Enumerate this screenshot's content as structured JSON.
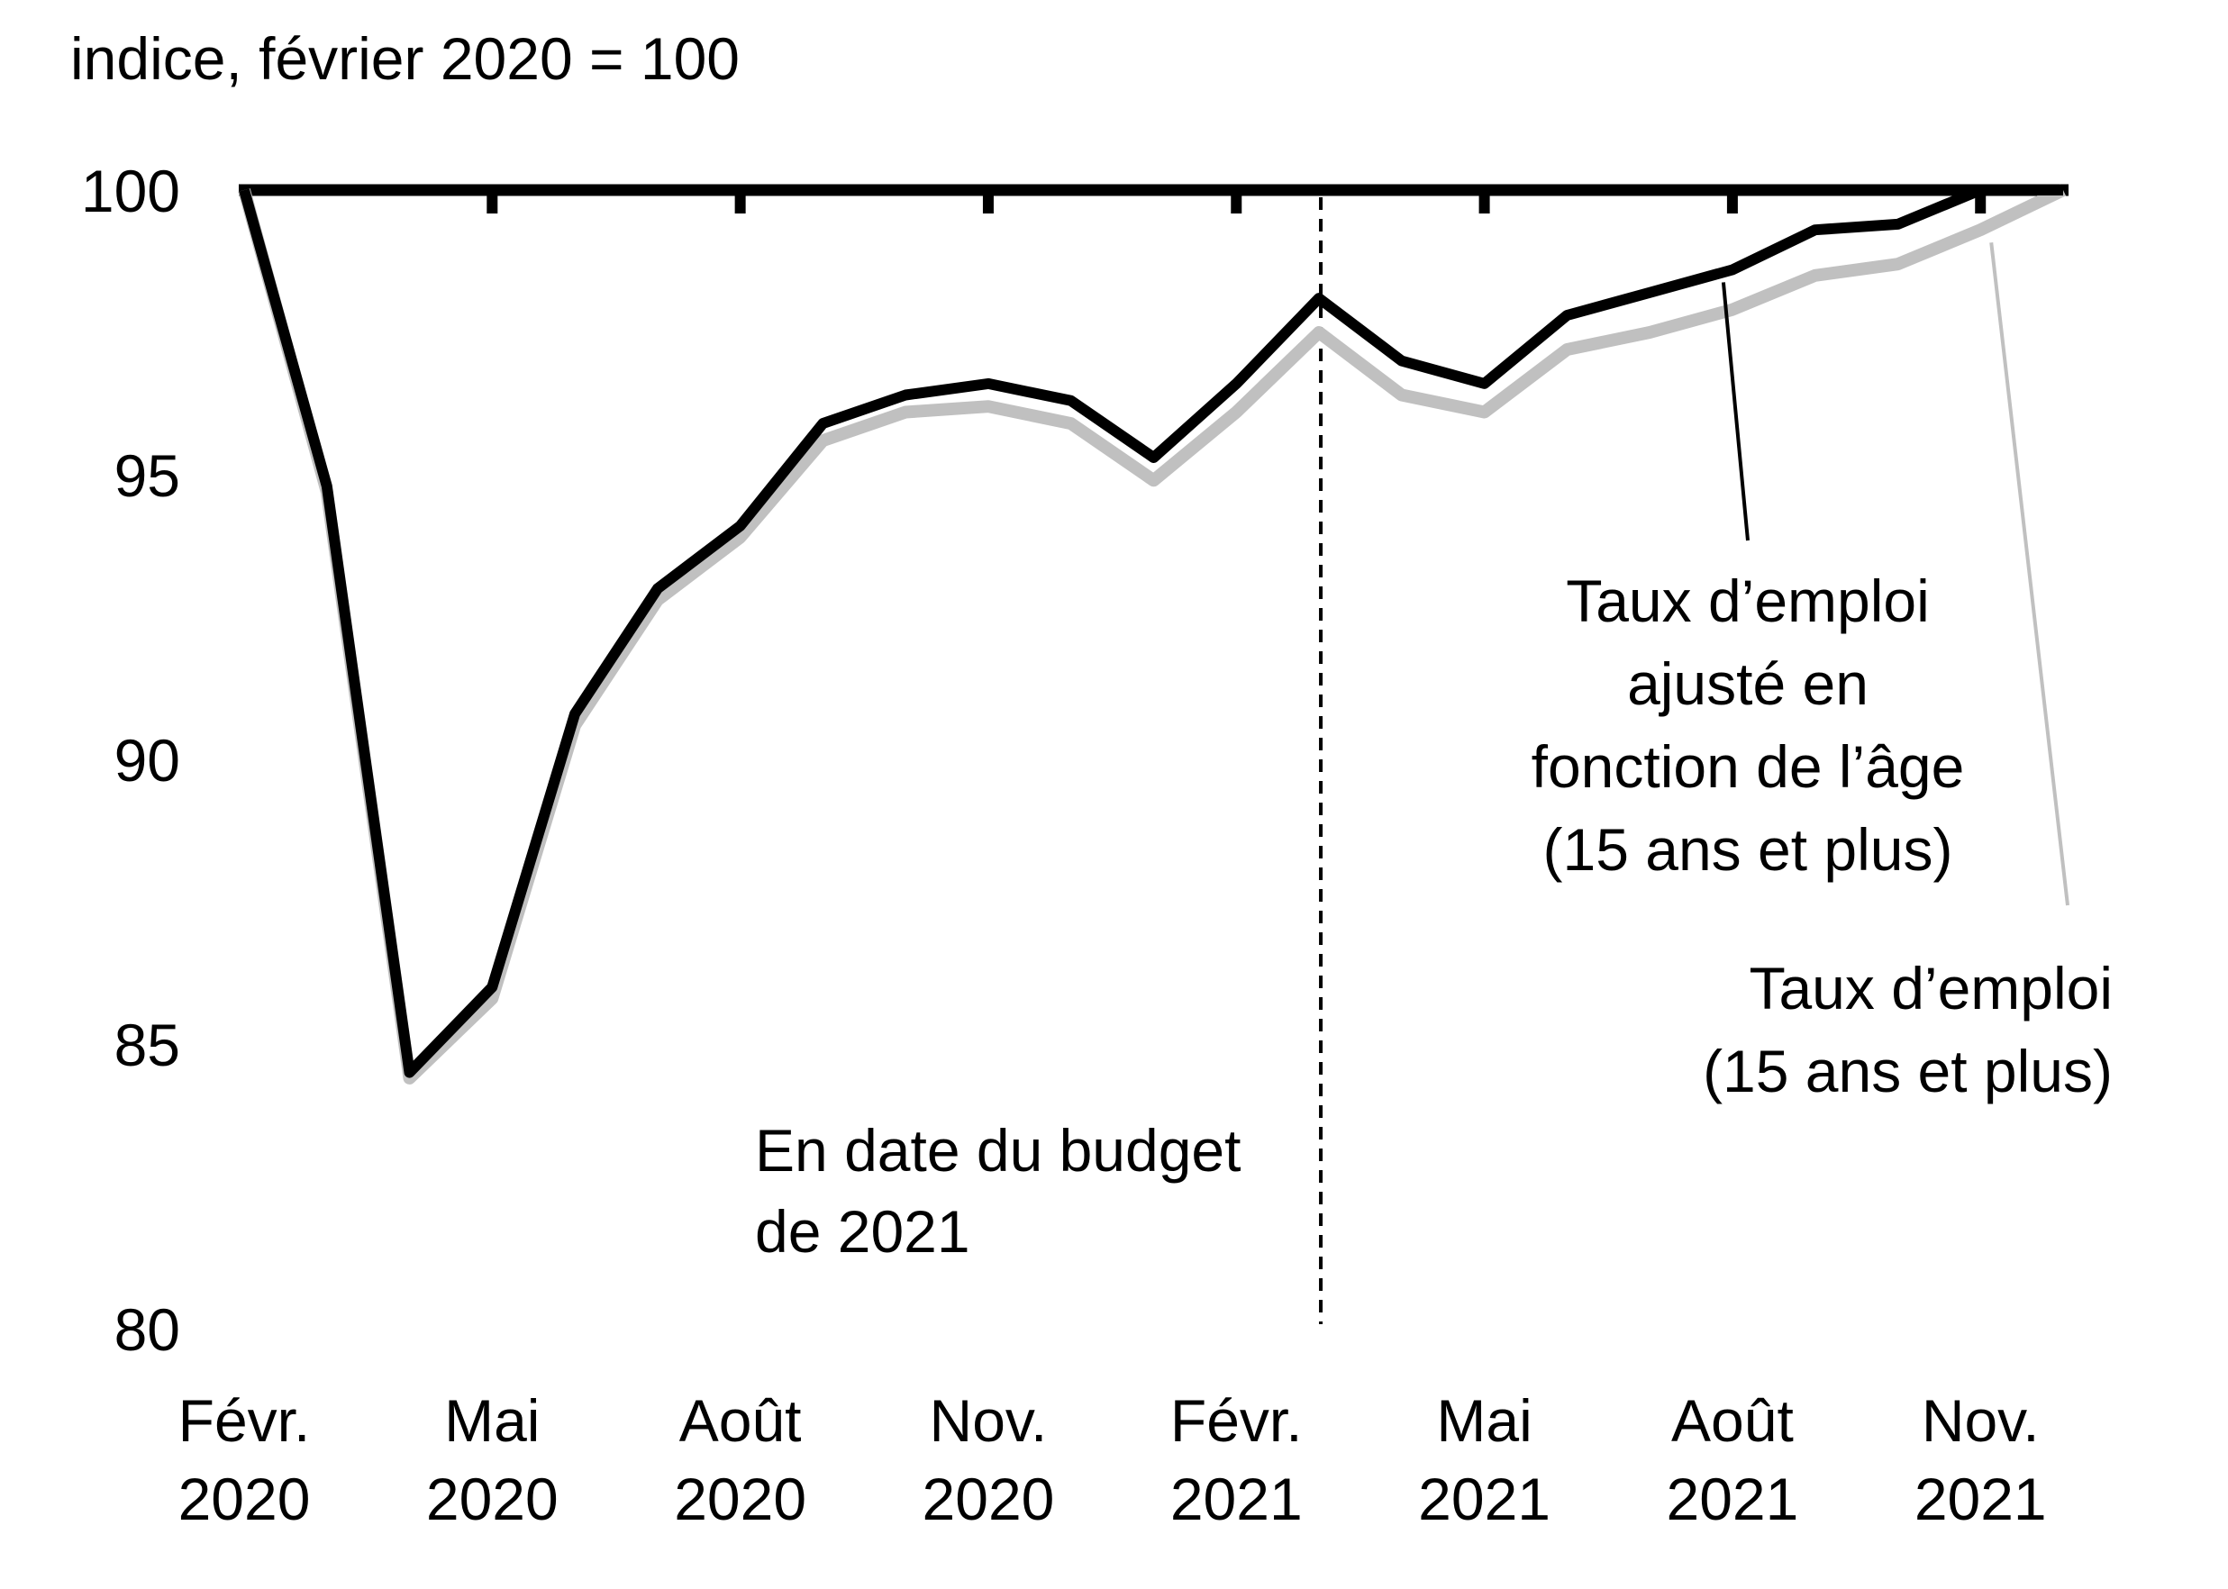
{
  "chart_data": {
    "type": "line",
    "title": "",
    "ylabel": "indice, février 2020 = 100",
    "xlabel": "",
    "ylim": [
      80,
      100
    ],
    "yticks": [
      80,
      85,
      90,
      95,
      100
    ],
    "xticks": [
      {
        "line1": "Févr.",
        "line2": "2020"
      },
      {
        "line1": "Mai",
        "line2": "2020"
      },
      {
        "line1": "Août",
        "line2": "2020"
      },
      {
        "line1": "Nov.",
        "line2": "2020"
      },
      {
        "line1": "Févr.",
        "line2": "2021"
      },
      {
        "line1": "Mai",
        "line2": "2021"
      },
      {
        "line1": "Août",
        "line2": "2021"
      },
      {
        "line1": "Nov.",
        "line2": "2021"
      }
    ],
    "x": [
      "2020-02",
      "2020-03",
      "2020-04",
      "2020-05",
      "2020-06",
      "2020-07",
      "2020-08",
      "2020-09",
      "2020-10",
      "2020-11",
      "2020-12",
      "2021-01",
      "2021-02",
      "2021-03",
      "2021-04",
      "2021-05",
      "2021-06",
      "2021-07",
      "2021-08",
      "2021-09",
      "2021-10",
      "2021-11",
      "2021-12"
    ],
    "series": [
      {
        "name": "Taux d'emploi (15 ans et plus)",
        "label_lines": [
          "Taux d’emploi",
          "(15 ans et plus)"
        ],
        "color": "#c0c0c0",
        "values": [
          100,
          94.7,
          84.4,
          85.8,
          90.6,
          92.8,
          93.9,
          95.6,
          96.1,
          96.2,
          95.9,
          94.9,
          96.1,
          97.5,
          96.4,
          96.1,
          97.2,
          97.5,
          97.9,
          98.5,
          98.7,
          99.3,
          100
        ]
      },
      {
        "name": "Taux d'emploi ajusté en fonction de l'âge (15 ans et plus)",
        "label_lines": [
          "Taux d’emploi",
          "ajusté en",
          "fonction de l’âge",
          "(15 ans et plus)"
        ],
        "color": "#000000",
        "values": [
          100,
          94.8,
          84.5,
          86.0,
          90.8,
          93.0,
          94.1,
          95.9,
          96.4,
          96.6,
          96.3,
          95.3,
          96.6,
          98.1,
          97.0,
          96.6,
          97.8,
          98.2,
          98.6,
          99.3,
          99.4,
          100,
          100
        ]
      }
    ],
    "annotation": {
      "x": "2021-03",
      "style": "dashed-vertical",
      "label_lines": [
        "En date du budget",
        "de 2021"
      ]
    }
  }
}
